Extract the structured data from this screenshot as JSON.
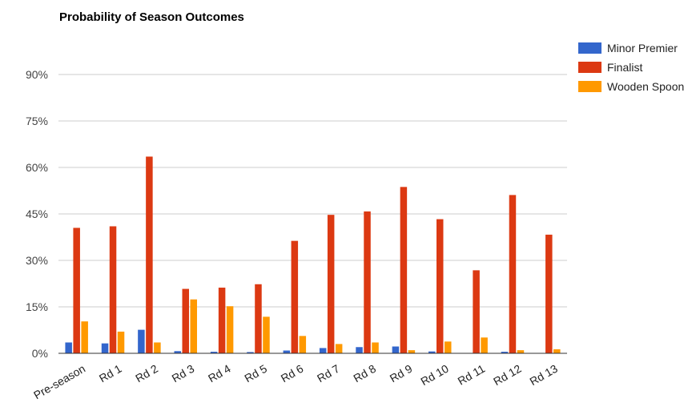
{
  "chart_data": {
    "type": "bar",
    "title": "Probability of Season Outcomes",
    "xlabel": "",
    "ylabel": "",
    "ylim": [
      0,
      90
    ],
    "yticks": [
      0,
      15,
      30,
      45,
      60,
      75,
      90
    ],
    "ytick_labels": [
      "0%",
      "15%",
      "30%",
      "45%",
      "60%",
      "75%",
      "90%"
    ],
    "grid": true,
    "legend_position": "right",
    "categories": [
      "Pre-season",
      "Rd 1",
      "Rd 2",
      "Rd 3",
      "Rd 4",
      "Rd 5",
      "Rd 6",
      "Rd 7",
      "Rd 8",
      "Rd 9",
      "Rd 10",
      "Rd 11",
      "Rd 12",
      "Rd 13"
    ],
    "series": [
      {
        "name": "Minor Premier",
        "color": "#3366cc",
        "values": [
          3.5,
          3.2,
          7.6,
          0.7,
          0.5,
          0.4,
          0.9,
          1.7,
          2.0,
          2.2,
          0.6,
          0.1,
          0.5,
          0.0
        ]
      },
      {
        "name": "Finalist",
        "color": "#dc3912",
        "values": [
          40.5,
          41.0,
          63.5,
          20.8,
          21.2,
          22.3,
          36.3,
          44.7,
          45.8,
          53.7,
          43.3,
          26.8,
          51.1,
          38.3
        ]
      },
      {
        "name": "Wooden Spoon",
        "color": "#ff9900",
        "values": [
          10.3,
          7.0,
          3.5,
          17.4,
          15.2,
          11.8,
          5.6,
          3.0,
          3.5,
          1.0,
          3.8,
          5.1,
          1.0,
          1.3
        ]
      }
    ]
  }
}
